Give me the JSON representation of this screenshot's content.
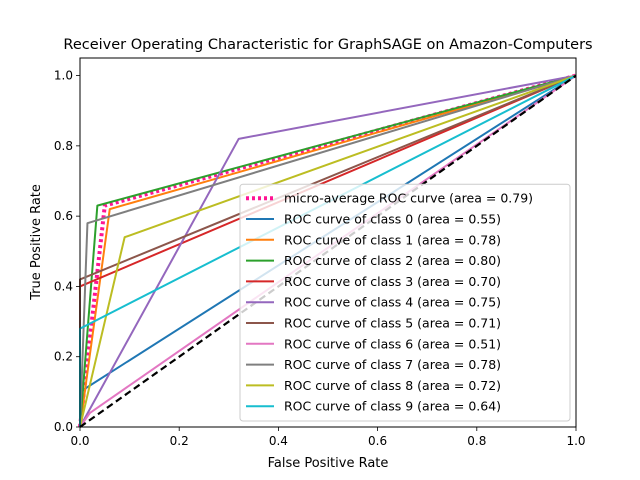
{
  "chart_data": {
    "type": "line",
    "title": "Receiver Operating Characteristic for GraphSAGE on Amazon-Computers",
    "xlabel": "False Positive Rate",
    "ylabel": "True Positive Rate",
    "xlim": [
      0.0,
      1.0
    ],
    "ylim": [
      0.0,
      1.05
    ],
    "xticks": [
      "0.0",
      "0.2",
      "0.4",
      "0.6",
      "0.8",
      "1.0"
    ],
    "yticks": [
      "0.0",
      "0.2",
      "0.4",
      "0.6",
      "0.8",
      "1.0"
    ],
    "grid": false,
    "legend_position": "lower-right",
    "series": [
      {
        "name": "micro-average ROC curve (area = 0.79)",
        "color": "#ff1493",
        "style": "dotted",
        "x": [
          0,
          0.05,
          1
        ],
        "y": [
          0,
          0.63,
          1
        ]
      },
      {
        "name": "ROC curve of class 0 (area = 0.55)",
        "color": "#1f77b4",
        "style": "solid",
        "x": [
          0,
          0,
          1
        ],
        "y": [
          0,
          0.1,
          1
        ]
      },
      {
        "name": "ROC curve of class 1 (area = 0.78)",
        "color": "#ff7f0e",
        "style": "solid",
        "x": [
          0,
          0.06,
          1
        ],
        "y": [
          0,
          0.62,
          1
        ]
      },
      {
        "name": "ROC curve of class 2 (area = 0.80)",
        "color": "#2ca02c",
        "style": "solid",
        "x": [
          0,
          0.035,
          1
        ],
        "y": [
          0,
          0.63,
          1
        ]
      },
      {
        "name": "ROC curve of class 3 (area = 0.70)",
        "color": "#d62728",
        "style": "solid",
        "x": [
          0,
          0,
          1
        ],
        "y": [
          0,
          0.4,
          1
        ]
      },
      {
        "name": "ROC curve of class 4 (area = 0.75)",
        "color": "#9467bd",
        "style": "solid",
        "x": [
          0,
          0.32,
          1
        ],
        "y": [
          0,
          0.82,
          1
        ]
      },
      {
        "name": "ROC curve of class 5 (area = 0.71)",
        "color": "#8c564b",
        "style": "solid",
        "x": [
          0,
          0,
          1
        ],
        "y": [
          0,
          0.42,
          1
        ]
      },
      {
        "name": "ROC curve of class 6 (area = 0.51)",
        "color": "#e377c2",
        "style": "solid",
        "x": [
          0,
          0.02,
          1
        ],
        "y": [
          0,
          0.04,
          1
        ]
      },
      {
        "name": "ROC curve of class 7 (area = 0.78)",
        "color": "#7f7f7f",
        "style": "solid",
        "x": [
          0,
          0.015,
          1
        ],
        "y": [
          0,
          0.58,
          1
        ]
      },
      {
        "name": "ROC curve of class 8 (area = 0.72)",
        "color": "#bcbd22",
        "style": "solid",
        "x": [
          0,
          0.09,
          1
        ],
        "y": [
          0,
          0.54,
          1
        ]
      },
      {
        "name": "ROC curve of class 9 (area = 0.64)",
        "color": "#17becf",
        "style": "solid",
        "x": [
          0,
          0,
          1
        ],
        "y": [
          0,
          0.28,
          1
        ]
      }
    ],
    "reference_line": {
      "x": [
        0,
        1
      ],
      "y": [
        0,
        1
      ],
      "color": "#000000",
      "style": "dashed"
    }
  }
}
